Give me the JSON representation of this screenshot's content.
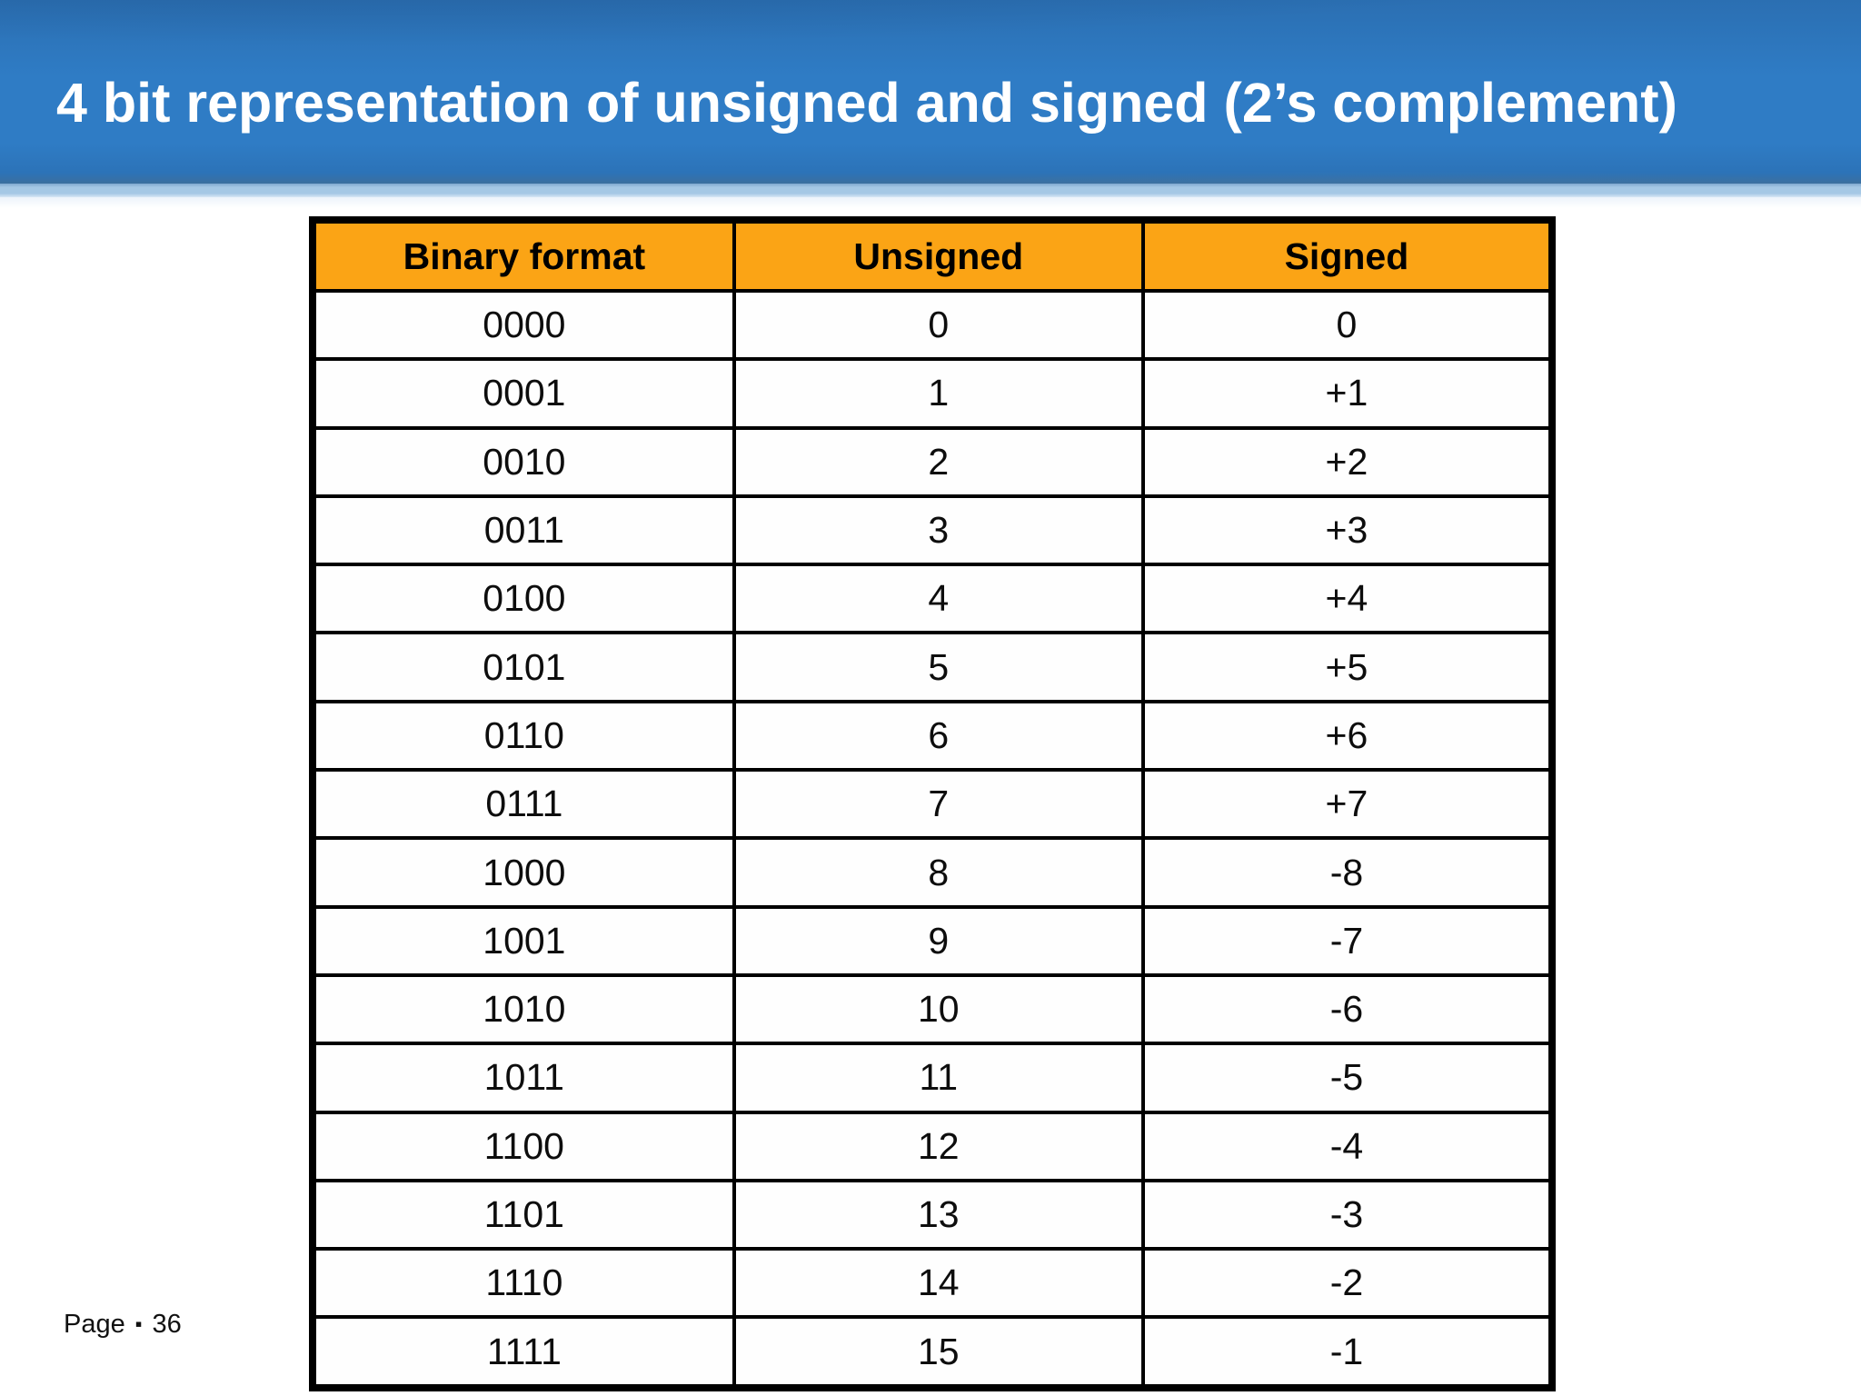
{
  "slide": {
    "title": "4 bit representation of unsigned and signed (2’s complement)",
    "footer": {
      "label": "Page",
      "bullet": "▪",
      "number": "36"
    }
  },
  "table": {
    "columns": [
      "Binary format",
      "Unsigned",
      "Signed"
    ],
    "rows": [
      [
        "0000",
        "0",
        "0"
      ],
      [
        "0001",
        "1",
        "+1"
      ],
      [
        "0010",
        "2",
        "+2"
      ],
      [
        "0011",
        "3",
        "+3"
      ],
      [
        "0100",
        "4",
        "+4"
      ],
      [
        "0101",
        "5",
        "+5"
      ],
      [
        "0110",
        "6",
        "+6"
      ],
      [
        "0111",
        "7",
        "+7"
      ],
      [
        "1000",
        "8",
        "-8"
      ],
      [
        "1001",
        "9",
        "-7"
      ],
      [
        "1010",
        "10",
        "-6"
      ],
      [
        "1011",
        "11",
        "-5"
      ],
      [
        "1100",
        "12",
        "-4"
      ],
      [
        "1101",
        "13",
        "-3"
      ],
      [
        "1110",
        "14",
        "-2"
      ],
      [
        "1111",
        "15",
        "-1"
      ]
    ]
  },
  "colors": {
    "header_blue": "#2F7CC5",
    "header_blue_dark": "#2B6FB2",
    "band_blue": "#A5C8E5",
    "table_header_orange": "#FBA415",
    "cell_text": "#0D0D0D"
  }
}
